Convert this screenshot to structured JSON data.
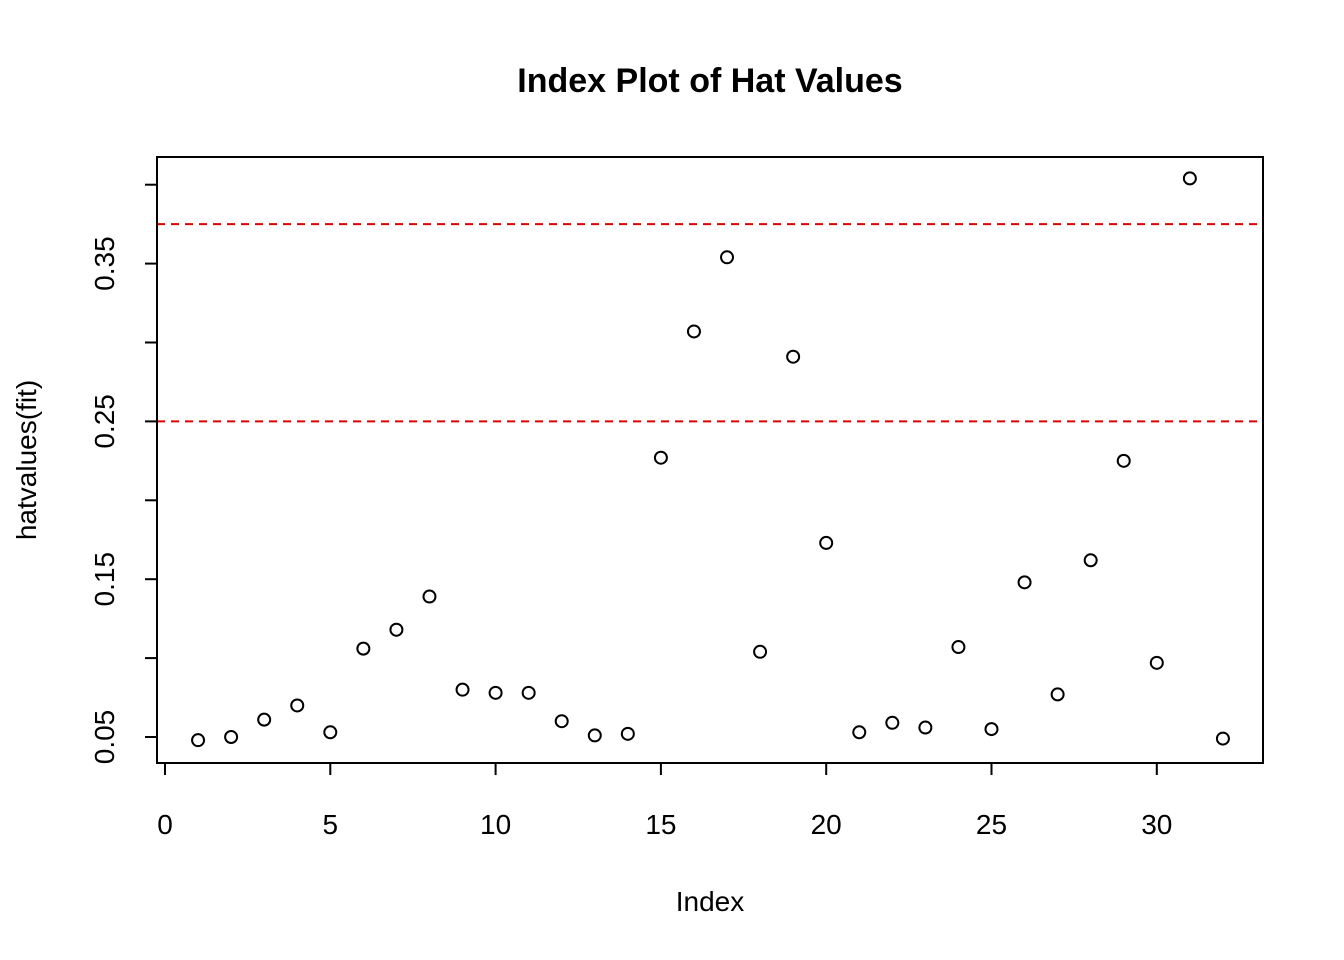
{
  "chart_data": {
    "type": "scatter",
    "title": "Index Plot of Hat Values",
    "xlabel": "Index",
    "ylabel": "hatvalues(fit)",
    "xlim": [
      0,
      32
    ],
    "ylim": [
      0.04,
      0.41
    ],
    "x_ticks": [
      0,
      5,
      10,
      15,
      20,
      25,
      30
    ],
    "x_tick_labels": [
      "0",
      "5",
      "10",
      "15",
      "20",
      "25",
      "30"
    ],
    "y_ticks": [
      0.05,
      0.1,
      0.15,
      0.2,
      0.25,
      0.3,
      0.35,
      0.4
    ],
    "y_tick_labels": [
      "0.05",
      "",
      "0.15",
      "",
      "0.25",
      "",
      "0.35",
      ""
    ],
    "grid": false,
    "reference_lines": [
      {
        "y": 0.25,
        "color": "#dd0000",
        "style": "dashed"
      },
      {
        "y": 0.375,
        "color": "#dd0000",
        "style": "dashed"
      }
    ],
    "x": [
      1,
      2,
      3,
      4,
      5,
      6,
      7,
      8,
      9,
      10,
      11,
      12,
      13,
      14,
      15,
      16,
      17,
      18,
      19,
      20,
      21,
      22,
      23,
      24,
      25,
      26,
      27,
      28,
      29,
      30,
      31,
      32
    ],
    "y": [
      0.048,
      0.05,
      0.061,
      0.07,
      0.053,
      0.106,
      0.118,
      0.139,
      0.08,
      0.078,
      0.078,
      0.06,
      0.051,
      0.052,
      0.227,
      0.307,
      0.354,
      0.104,
      0.291,
      0.173,
      0.053,
      0.059,
      0.056,
      0.107,
      0.055,
      0.148,
      0.077,
      0.162,
      0.225,
      0.097,
      0.404,
      0.049
    ]
  }
}
